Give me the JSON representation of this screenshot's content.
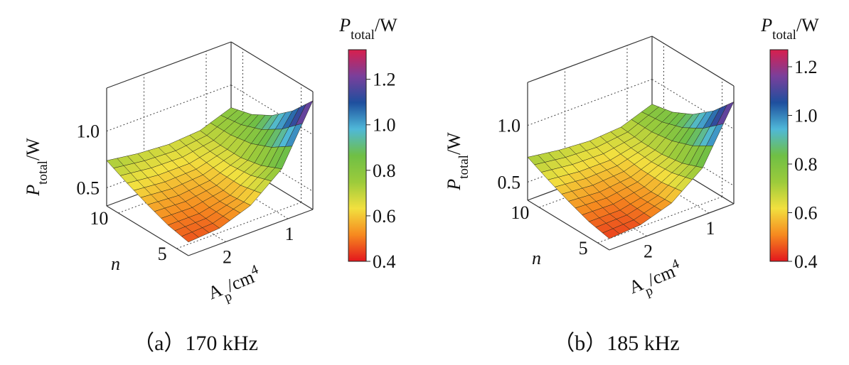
{
  "chart_data": [
    {
      "type": "surface",
      "caption": "（a）170 kHz",
      "x_label": {
        "text": "A",
        "sub": "p",
        "unit": "/cm",
        "sup": "4"
      },
      "y_label": "n",
      "z_label": {
        "text": "P",
        "sub": "total",
        "unit": "/W"
      },
      "colorbar_label": {
        "text": "P",
        "sub": "total",
        "unit": "/W"
      },
      "x": [
        0.6,
        1.1,
        1.6,
        2.1,
        2.6
      ],
      "y": [
        4,
        5.75,
        7.5,
        9.25,
        11
      ],
      "z": [
        [
          1.3,
          0.8,
          0.58,
          0.48,
          0.46
        ],
        [
          1.1,
          0.72,
          0.56,
          0.5,
          0.5
        ],
        [
          0.95,
          0.68,
          0.58,
          0.55,
          0.57
        ],
        [
          0.85,
          0.68,
          0.62,
          0.62,
          0.65
        ],
        [
          0.8,
          0.7,
          0.68,
          0.7,
          0.74
        ]
      ],
      "xlim": [
        0.6,
        2.6
      ],
      "xticks": [
        1,
        2
      ],
      "ylim": [
        4,
        11
      ],
      "yticks": [
        5,
        10
      ],
      "zlim": [
        0.34,
        1.38
      ],
      "zticks": [
        0.5,
        {
          "value": 1,
          "label": "1.0"
        }
      ],
      "clim": [
        0.4,
        1.33
      ],
      "cticks": [
        0.4,
        0.6,
        0.8,
        {
          "value": 1,
          "label": "1.0"
        },
        1.2
      ],
      "colormap": [
        "#e3161d",
        "#f6891f",
        "#f2e03f",
        "#9ccb3b",
        "#6fbf45",
        "#4fb8d8",
        "#1e4f9e",
        "#7a3f9b",
        "#d81f4d"
      ],
      "grid": true
    },
    {
      "type": "surface",
      "caption": "（b）185 kHz",
      "x_label": {
        "text": "A",
        "sub": "p",
        "unit": "/cm",
        "sup": "4"
      },
      "y_label": "n",
      "z_label": {
        "text": "P",
        "sub": "total",
        "unit": "/W"
      },
      "colorbar_label": {
        "text": "P",
        "sub": "total",
        "unit": "/W"
      },
      "x": [
        0.6,
        1.1,
        1.6,
        2.1,
        2.6
      ],
      "y": [
        4,
        5.75,
        7.5,
        9.25,
        11
      ],
      "z": [
        [
          1.24,
          0.76,
          0.55,
          0.46,
          0.44
        ],
        [
          1.05,
          0.69,
          0.54,
          0.48,
          0.48
        ],
        [
          0.91,
          0.66,
          0.56,
          0.53,
          0.55
        ],
        [
          0.82,
          0.66,
          0.6,
          0.6,
          0.63
        ],
        [
          0.78,
          0.68,
          0.66,
          0.68,
          0.72
        ]
      ],
      "xlim": [
        0.6,
        2.6
      ],
      "xticks": [
        1,
        2
      ],
      "ylim": [
        4,
        11
      ],
      "yticks": [
        5,
        10
      ],
      "zlim": [
        0.34,
        1.38
      ],
      "zticks": [
        0.5,
        {
          "value": 1,
          "label": "1.0"
        }
      ],
      "clim": [
        0.4,
        1.27
      ],
      "cticks": [
        0.4,
        0.6,
        0.8,
        {
          "value": 1,
          "label": "1.0"
        },
        1.2
      ],
      "colormap": [
        "#e3161d",
        "#f6891f",
        "#f2e03f",
        "#9ccb3b",
        "#6fbf45",
        "#4fb8d8",
        "#1e4f9e",
        "#7a3f9b",
        "#d81f4d"
      ],
      "grid": true
    }
  ]
}
